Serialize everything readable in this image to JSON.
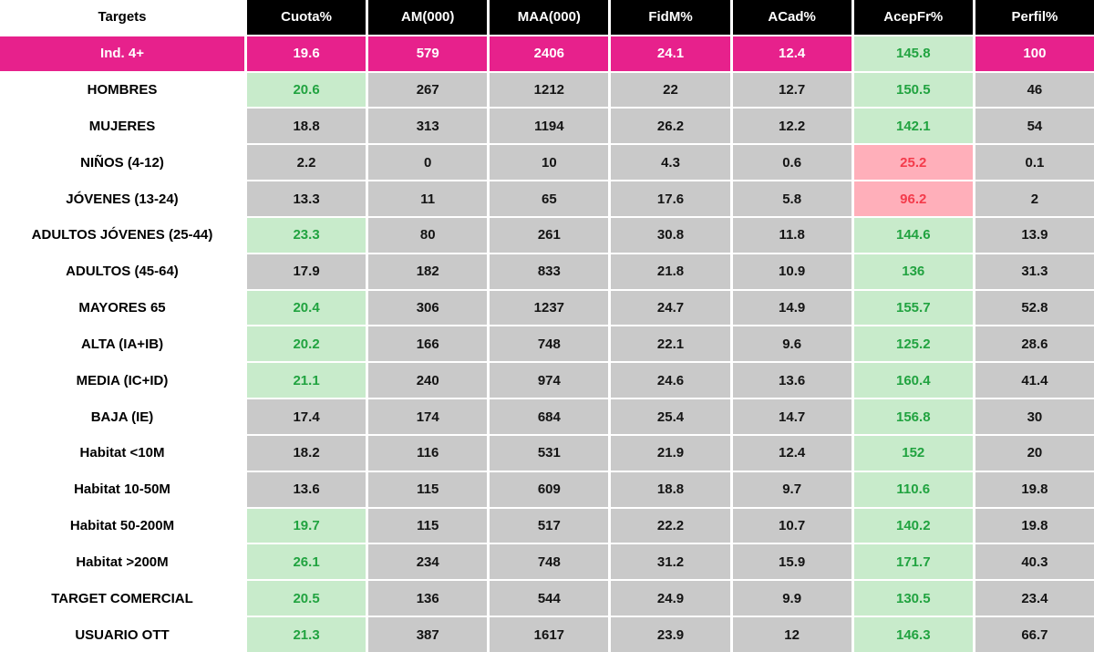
{
  "colors": {
    "brand_pink": "#E7218C",
    "header_bg": "#000000",
    "header_text": "#FFFFFF",
    "cell_gray": "#C9C9C9",
    "good_bg": "#C8EBCB",
    "good_text": "#21A340",
    "bad_bg": "#FFAFBA",
    "bad_text": "#F43B4B"
  },
  "chart_data": {
    "type": "table",
    "title": "Targets audience metrics table",
    "columns": [
      "Targets",
      "Cuota%",
      "AM(000)",
      "MAA(000)",
      "FidM%",
      "ACad%",
      "AcepFr%",
      "Perfil%"
    ],
    "rows": [
      {
        "target": "Ind. 4+",
        "label_state": "brand",
        "values": [
          "19.6",
          "579",
          "2406",
          "24.1",
          "12.4",
          "145.8",
          "100"
        ],
        "states": [
          "brand",
          "brand",
          "brand",
          "brand",
          "brand",
          "good",
          "brand"
        ]
      },
      {
        "target": "HOMBRES",
        "label_state": "plain",
        "values": [
          "20.6",
          "267",
          "1212",
          "22",
          "12.7",
          "150.5",
          "46"
        ],
        "states": [
          "good",
          "neutral",
          "neutral",
          "neutral",
          "neutral",
          "good",
          "neutral"
        ]
      },
      {
        "target": "MUJERES",
        "label_state": "plain",
        "values": [
          "18.8",
          "313",
          "1194",
          "26.2",
          "12.2",
          "142.1",
          "54"
        ],
        "states": [
          "neutral",
          "neutral",
          "neutral",
          "neutral",
          "neutral",
          "good",
          "neutral"
        ]
      },
      {
        "target": "NIÑOS (4-12)",
        "label_state": "plain",
        "values": [
          "2.2",
          "0",
          "10",
          "4.3",
          "0.6",
          "25.2",
          "0.1"
        ],
        "states": [
          "neutral",
          "neutral",
          "neutral",
          "neutral",
          "neutral",
          "bad",
          "neutral"
        ]
      },
      {
        "target": "JÓVENES (13-24)",
        "label_state": "plain",
        "values": [
          "13.3",
          "11",
          "65",
          "17.6",
          "5.8",
          "96.2",
          "2"
        ],
        "states": [
          "neutral",
          "neutral",
          "neutral",
          "neutral",
          "neutral",
          "bad",
          "neutral"
        ]
      },
      {
        "target": "ADULTOS JÓVENES (25-44)",
        "label_state": "plain",
        "values": [
          "23.3",
          "80",
          "261",
          "30.8",
          "11.8",
          "144.6",
          "13.9"
        ],
        "states": [
          "good",
          "neutral",
          "neutral",
          "neutral",
          "neutral",
          "good",
          "neutral"
        ]
      },
      {
        "target": "ADULTOS (45-64)",
        "label_state": "plain",
        "values": [
          "17.9",
          "182",
          "833",
          "21.8",
          "10.9",
          "136",
          "31.3"
        ],
        "states": [
          "neutral",
          "neutral",
          "neutral",
          "neutral",
          "neutral",
          "good",
          "neutral"
        ]
      },
      {
        "target": "MAYORES 65",
        "label_state": "plain",
        "values": [
          "20.4",
          "306",
          "1237",
          "24.7",
          "14.9",
          "155.7",
          "52.8"
        ],
        "states": [
          "good",
          "neutral",
          "neutral",
          "neutral",
          "neutral",
          "good",
          "neutral"
        ]
      },
      {
        "target": "ALTA (IA+IB)",
        "label_state": "plain",
        "values": [
          "20.2",
          "166",
          "748",
          "22.1",
          "9.6",
          "125.2",
          "28.6"
        ],
        "states": [
          "good",
          "neutral",
          "neutral",
          "neutral",
          "neutral",
          "good",
          "neutral"
        ]
      },
      {
        "target": "MEDIA (IC+ID)",
        "label_state": "plain",
        "values": [
          "21.1",
          "240",
          "974",
          "24.6",
          "13.6",
          "160.4",
          "41.4"
        ],
        "states": [
          "good",
          "neutral",
          "neutral",
          "neutral",
          "neutral",
          "good",
          "neutral"
        ]
      },
      {
        "target": "BAJA (IE)",
        "label_state": "plain",
        "values": [
          "17.4",
          "174",
          "684",
          "25.4",
          "14.7",
          "156.8",
          "30"
        ],
        "states": [
          "neutral",
          "neutral",
          "neutral",
          "neutral",
          "neutral",
          "good",
          "neutral"
        ]
      },
      {
        "target": "Habitat <10M",
        "label_state": "plain",
        "values": [
          "18.2",
          "116",
          "531",
          "21.9",
          "12.4",
          "152",
          "20"
        ],
        "states": [
          "neutral",
          "neutral",
          "neutral",
          "neutral",
          "neutral",
          "good",
          "neutral"
        ]
      },
      {
        "target": "Habitat 10-50M",
        "label_state": "plain",
        "values": [
          "13.6",
          "115",
          "609",
          "18.8",
          "9.7",
          "110.6",
          "19.8"
        ],
        "states": [
          "neutral",
          "neutral",
          "neutral",
          "neutral",
          "neutral",
          "good",
          "neutral"
        ]
      },
      {
        "target": "Habitat 50-200M",
        "label_state": "plain",
        "values": [
          "19.7",
          "115",
          "517",
          "22.2",
          "10.7",
          "140.2",
          "19.8"
        ],
        "states": [
          "good",
          "neutral",
          "neutral",
          "neutral",
          "neutral",
          "good",
          "neutral"
        ]
      },
      {
        "target": "Habitat >200M",
        "label_state": "plain",
        "values": [
          "26.1",
          "234",
          "748",
          "31.2",
          "15.9",
          "171.7",
          "40.3"
        ],
        "states": [
          "good",
          "neutral",
          "neutral",
          "neutral",
          "neutral",
          "good",
          "neutral"
        ]
      },
      {
        "target": "TARGET COMERCIAL",
        "label_state": "plain",
        "values": [
          "20.5",
          "136",
          "544",
          "24.9",
          "9.9",
          "130.5",
          "23.4"
        ],
        "states": [
          "good",
          "neutral",
          "neutral",
          "neutral",
          "neutral",
          "good",
          "neutral"
        ]
      },
      {
        "target": "USUARIO OTT",
        "label_state": "plain",
        "values": [
          "21.3",
          "387",
          "1617",
          "23.9",
          "12",
          "146.3",
          "66.7"
        ],
        "states": [
          "good",
          "neutral",
          "neutral",
          "neutral",
          "neutral",
          "good",
          "neutral"
        ]
      }
    ]
  }
}
